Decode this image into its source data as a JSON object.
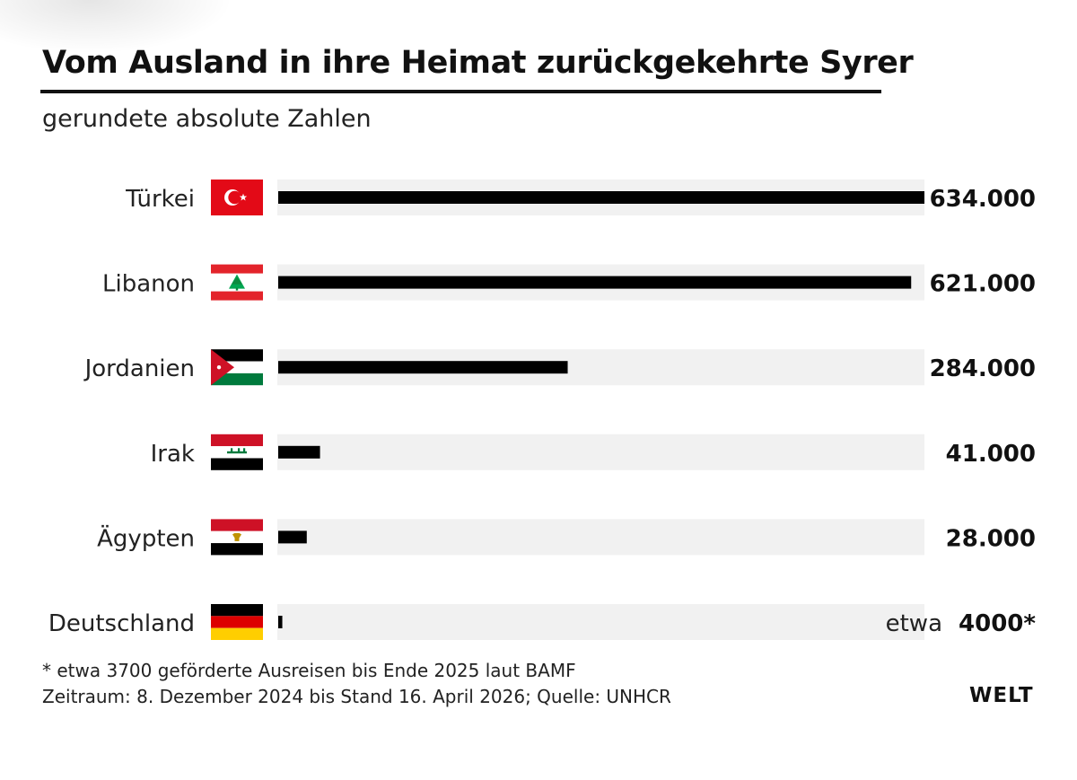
{
  "header": {
    "title": "Vom Ausland in ihre Heimat zurückgekehrte Syrer",
    "subtitle": "gerundete absolute Zahlen"
  },
  "chart_data": {
    "type": "bar",
    "orientation": "horizontal",
    "categories": [
      "Türkei",
      "Libanon",
      "Jordanien",
      "Irak",
      "Ägypten",
      "Deutschland"
    ],
    "values": [
      634000,
      621000,
      284000,
      41000,
      28000,
      4000
    ],
    "value_labels": [
      "634.000",
      "621.000",
      "284.000",
      "41.000",
      "28.000",
      "4000*"
    ],
    "value_prefixes": [
      "",
      "",
      "",
      "",
      "",
      "etwa"
    ],
    "flags": [
      "flag-turkey",
      "flag-lebanon",
      "flag-jordan",
      "flag-iraq",
      "flag-egypt",
      "flag-germany"
    ],
    "xlim": [
      0,
      634000
    ],
    "bar_color": "#000000",
    "track_color": "#f1f1f1"
  },
  "footer": {
    "note": "* etwa 3700 geförderte Ausreisen bis Ende 2025 laut BAMF",
    "source": "Zeitraum: 8. Dezember 2024 bis Stand 16. April 2026; Quelle: UNHCR",
    "logo": "WELT"
  }
}
